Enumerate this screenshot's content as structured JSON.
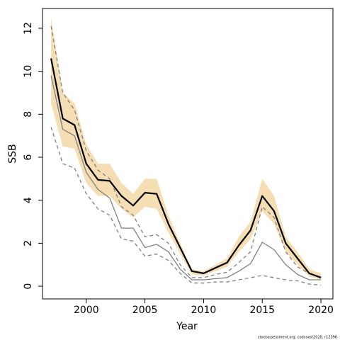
{
  "chart_data": {
    "type": "line",
    "xlabel": "Year",
    "ylabel": "SSB",
    "footnote": "stockassessment.org, codcoast2020, r12396",
    "x": [
      1997,
      1998,
      1999,
      2000,
      2001,
      2002,
      2003,
      2004,
      2005,
      2006,
      2007,
      2008,
      2009,
      2010,
      2011,
      2012,
      2013,
      2014,
      2015,
      2016,
      2017,
      2018,
      2019,
      2020
    ],
    "band": {
      "color": "#f5deb3",
      "upper": [
        12.5,
        9.0,
        8.5,
        6.6,
        5.7,
        5.7,
        4.8,
        4.3,
        5.0,
        5.0,
        3.3,
        2.0,
        0.8,
        0.7,
        1.0,
        1.3,
        2.3,
        3.0,
        5.0,
        4.2,
        2.3,
        1.6,
        0.8,
        0.6
      ],
      "lower": [
        8.5,
        6.5,
        6.4,
        4.8,
        4.2,
        4.2,
        3.6,
        3.2,
        3.7,
        3.6,
        2.5,
        1.5,
        0.55,
        0.5,
        0.7,
        0.9,
        1.6,
        2.2,
        3.5,
        2.9,
        1.6,
        1.0,
        0.45,
        0.3
      ]
    },
    "series": [
      {
        "color": "#808080",
        "dash": true,
        "width": 1.3,
        "values": [
          12.1,
          9.0,
          8.2,
          6.3,
          5.4,
          5.0,
          3.7,
          3.3,
          2.3,
          2.4,
          2.0,
          1.0,
          0.4,
          0.4,
          0.55,
          0.65,
          1.1,
          1.6,
          3.7,
          3.2,
          1.6,
          0.9,
          0.6,
          0.4
        ]
      },
      {
        "color": "#808080",
        "dash": true,
        "width": 1.3,
        "values": [
          7.4,
          5.7,
          5.5,
          4.3,
          3.6,
          3.3,
          2.2,
          2.1,
          1.4,
          1.5,
          1.2,
          0.6,
          0.15,
          0.15,
          0.2,
          0.2,
          0.3,
          0.4,
          0.5,
          0.4,
          0.3,
          0.25,
          0.1,
          0.05
        ]
      },
      {
        "color": "#808080",
        "dash": false,
        "width": 1.3,
        "values": [
          9.8,
          7.3,
          7.0,
          5.3,
          4.5,
          4.1,
          2.7,
          2.7,
          1.8,
          1.95,
          1.6,
          0.8,
          0.3,
          0.3,
          0.35,
          0.4,
          0.7,
          1.05,
          2.05,
          1.7,
          1.0,
          0.55,
          0.3,
          0.3
        ]
      },
      {
        "color": "#000000",
        "dash": false,
        "width": 2.2,
        "values": [
          10.6,
          7.8,
          7.5,
          5.7,
          4.95,
          4.9,
          4.2,
          3.75,
          4.35,
          4.3,
          2.9,
          1.8,
          0.7,
          0.6,
          0.85,
          1.1,
          1.9,
          2.6,
          4.2,
          3.5,
          2.0,
          1.3,
          0.6,
          0.4
        ]
      }
    ],
    "xlim": [
      1996.27,
      2021.02
    ],
    "ylim": [
      -0.59,
      12.92
    ],
    "xticks": [
      2000,
      2005,
      2010,
      2015,
      2020
    ],
    "yticks": [
      0,
      2,
      4,
      6,
      8,
      10,
      12
    ]
  }
}
